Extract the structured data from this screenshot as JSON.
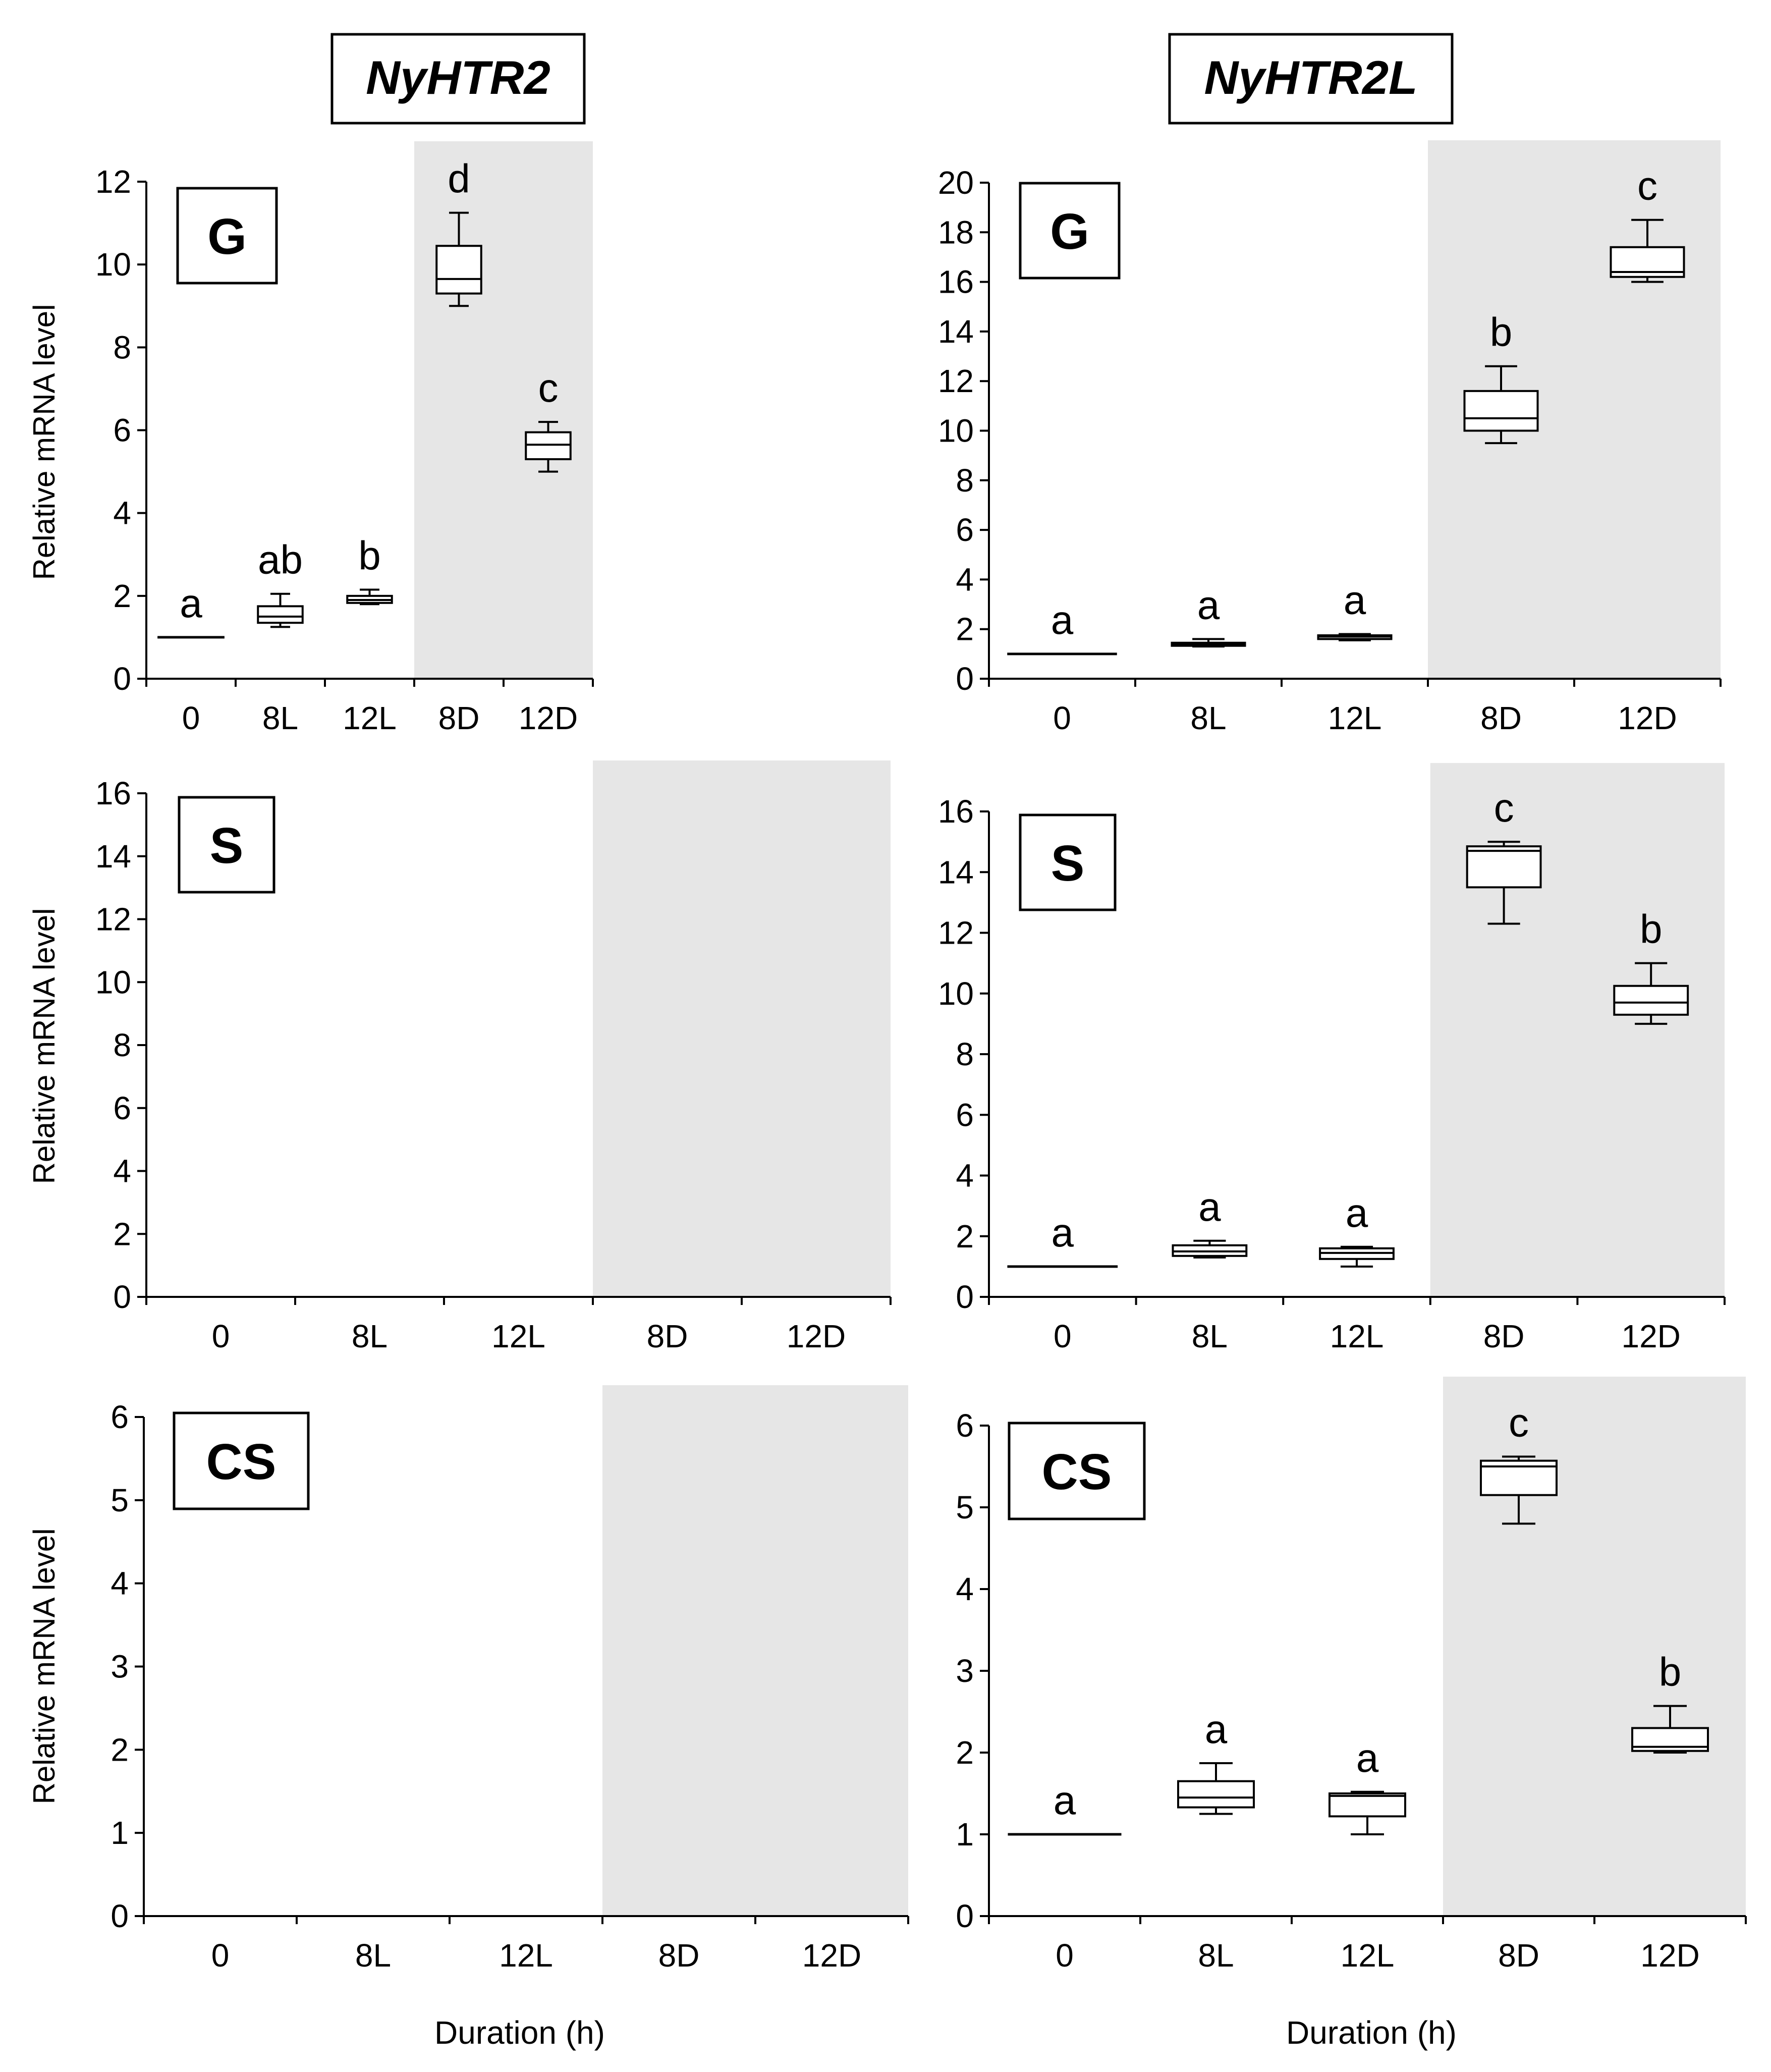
{
  "columns": [
    {
      "gene": "NyHTR2"
    },
    {
      "gene": "NyHTR2L"
    }
  ],
  "ylabel": "Relative  mRNA level",
  "xlabel": "Duration  (h)",
  "chart_data": [
    {
      "type": "box",
      "gene": "NyHTR2",
      "tissue": "G",
      "categories": [
        "0",
        "8L",
        "12L",
        "8D",
        "12D"
      ],
      "dark_categories": [
        "8D",
        "12D"
      ],
      "ylim": [
        0,
        12
      ],
      "yticks": [
        0,
        2,
        4,
        6,
        8,
        10,
        12
      ],
      "boxes": [
        {
          "category": "0",
          "min": 1.0,
          "q1": 1.0,
          "median": 1.0,
          "q3": 1.0,
          "max": 1.0,
          "letter": "a"
        },
        {
          "category": "8L",
          "min": 1.25,
          "q1": 1.35,
          "median": 1.5,
          "q3": 1.75,
          "max": 2.05,
          "letter": "ab"
        },
        {
          "category": "12L",
          "min": 1.8,
          "q1": 1.83,
          "median": 1.9,
          "q3": 2.0,
          "max": 2.15,
          "letter": "b"
        },
        {
          "category": "8D",
          "min": 9.0,
          "q1": 9.3,
          "median": 9.65,
          "q3": 10.45,
          "max": 11.25,
          "letter": "d"
        },
        {
          "category": "12D",
          "min": 5.0,
          "q1": 5.3,
          "median": 5.65,
          "q3": 5.95,
          "max": 6.2,
          "letter": "c"
        }
      ]
    },
    {
      "type": "box",
      "gene": "NyHTR2L",
      "tissue": "G",
      "categories": [
        "0",
        "8L",
        "12L",
        "8D",
        "12D"
      ],
      "dark_categories": [
        "8D",
        "12D"
      ],
      "ylim": [
        0,
        20
      ],
      "yticks": [
        0,
        2,
        4,
        6,
        8,
        10,
        12,
        14,
        16,
        18,
        20
      ],
      "boxes": [
        {
          "category": "0",
          "min": 1.0,
          "q1": 1.0,
          "median": 1.0,
          "q3": 1.0,
          "max": 1.0,
          "letter": "a"
        },
        {
          "category": "8L",
          "min": 1.3,
          "q1": 1.35,
          "median": 1.4,
          "q3": 1.45,
          "max": 1.6,
          "letter": "a"
        },
        {
          "category": "12L",
          "min": 1.55,
          "q1": 1.6,
          "median": 1.7,
          "q3": 1.75,
          "max": 1.8,
          "letter": "a"
        },
        {
          "category": "8D",
          "min": 9.5,
          "q1": 10.0,
          "median": 10.5,
          "q3": 11.6,
          "max": 12.6,
          "letter": "b"
        },
        {
          "category": "12D",
          "min": 16.0,
          "q1": 16.2,
          "median": 16.4,
          "q3": 17.4,
          "max": 18.5,
          "letter": "c"
        }
      ]
    },
    {
      "type": "box",
      "gene": "NyHTR2",
      "tissue": "S",
      "categories": [
        "0",
        "8L",
        "12L",
        "8D",
        "12D"
      ],
      "dark_categories": [
        "8D",
        "12D"
      ],
      "ylim": [
        0,
        16
      ],
      "yticks": [
        0,
        2,
        4,
        6,
        8,
        10,
        12,
        14,
        16
      ],
      "boxes": []
    },
    {
      "type": "box",
      "gene": "NyHTR2L",
      "tissue": "S",
      "categories": [
        "0",
        "8L",
        "12L",
        "8D",
        "12D"
      ],
      "dark_categories": [
        "8D",
        "12D"
      ],
      "ylim": [
        0,
        16
      ],
      "yticks": [
        0,
        2,
        4,
        6,
        8,
        10,
        12,
        14,
        16
      ],
      "boxes": [
        {
          "category": "0",
          "min": 1.0,
          "q1": 1.0,
          "median": 1.0,
          "q3": 1.0,
          "max": 1.0,
          "letter": "a"
        },
        {
          "category": "8L",
          "min": 1.3,
          "q1": 1.35,
          "median": 1.5,
          "q3": 1.7,
          "max": 1.85,
          "letter": "a"
        },
        {
          "category": "12L",
          "min": 1.0,
          "q1": 1.25,
          "median": 1.45,
          "q3": 1.6,
          "max": 1.65,
          "letter": "a"
        },
        {
          "category": "8D",
          "min": 12.3,
          "q1": 13.5,
          "median": 14.7,
          "q3": 14.85,
          "max": 15.0,
          "letter": "c"
        },
        {
          "category": "12D",
          "min": 9.0,
          "q1": 9.3,
          "median": 9.7,
          "q3": 10.25,
          "max": 11.0,
          "letter": "b"
        }
      ]
    },
    {
      "type": "box",
      "gene": "NyHTR2",
      "tissue": "CS",
      "categories": [
        "0",
        "8L",
        "12L",
        "8D",
        "12D"
      ],
      "dark_categories": [
        "8D",
        "12D"
      ],
      "ylim": [
        0,
        6
      ],
      "yticks": [
        0,
        1,
        2,
        3,
        4,
        5,
        6
      ],
      "boxes": []
    },
    {
      "type": "box",
      "gene": "NyHTR2L",
      "tissue": "CS",
      "categories": [
        "0",
        "8L",
        "12L",
        "8D",
        "12D"
      ],
      "dark_categories": [
        "8D",
        "12D"
      ],
      "ylim": [
        0,
        6
      ],
      "yticks": [
        0,
        1,
        2,
        3,
        4,
        5,
        6
      ],
      "boxes": [
        {
          "category": "0",
          "min": 1.0,
          "q1": 1.0,
          "median": 1.0,
          "q3": 1.0,
          "max": 1.0,
          "letter": "a"
        },
        {
          "category": "8L",
          "min": 1.25,
          "q1": 1.33,
          "median": 1.45,
          "q3": 1.65,
          "max": 1.87,
          "letter": "a"
        },
        {
          "category": "12L",
          "min": 1.0,
          "q1": 1.22,
          "median": 1.47,
          "q3": 1.5,
          "max": 1.52,
          "letter": "a"
        },
        {
          "category": "8D",
          "min": 4.8,
          "q1": 5.15,
          "median": 5.5,
          "q3": 5.57,
          "max": 5.62,
          "letter": "c"
        },
        {
          "category": "12D",
          "min": 2.0,
          "q1": 2.02,
          "median": 2.07,
          "q3": 2.3,
          "max": 2.57,
          "letter": "b"
        }
      ]
    }
  ],
  "style": {
    "shade_color": "#e6e6e6",
    "line_color": "#000000"
  }
}
